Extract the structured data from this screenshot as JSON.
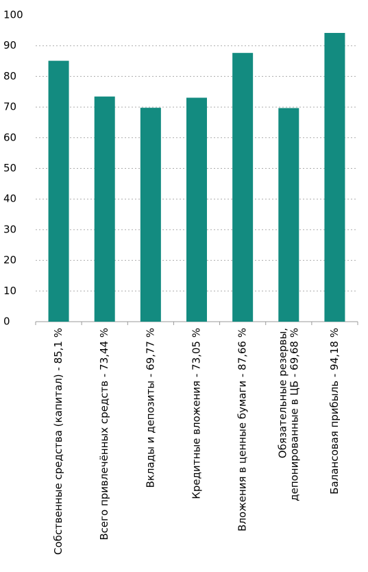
{
  "chart_data": {
    "type": "bar",
    "categories": [
      "Собственные средства (капитал) - 85,1 %",
      "Всего привлечённых средств - 73,44 %",
      "Вклады и депозиты - 69,77 %",
      "Кредитные вложения - 73,05 %",
      "Вложения в ценные бумаги - 87,66 %",
      [
        "Обязательные резервы,",
        "депонированные в ЦБ - 69,68 %"
      ],
      "Балансовая прибыль - 94,18 %"
    ],
    "values": [
      85.1,
      73.44,
      69.77,
      73.05,
      87.66,
      69.68,
      94.18
    ],
    "color": "#138b80",
    "ylim": [
      0,
      100
    ],
    "yticks": [
      0,
      10,
      20,
      30,
      40,
      50,
      60,
      70,
      80,
      90,
      100
    ],
    "grid": true
  }
}
